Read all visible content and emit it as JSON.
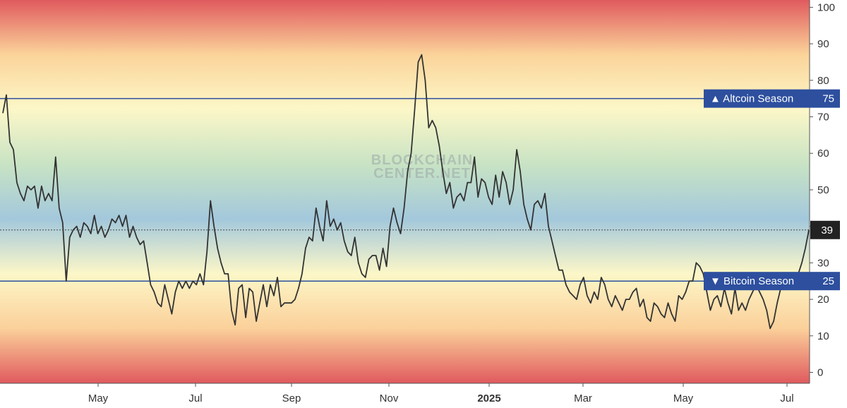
{
  "chart_data": {
    "type": "line",
    "title": "",
    "xlabel": "",
    "ylabel": "",
    "watermark": [
      "BLOCKCHAIN",
      "CENTER.NET"
    ],
    "ylim": [
      -3,
      102
    ],
    "y_ticks": [
      0,
      10,
      20,
      30,
      40,
      50,
      60,
      70,
      80,
      90,
      100
    ],
    "x_ticks": [
      {
        "label": "May",
        "bold": false
      },
      {
        "label": "Jul",
        "bold": false
      },
      {
        "label": "Sep",
        "bold": false
      },
      {
        "label": "Nov",
        "bold": false
      },
      {
        "label": "2025",
        "bold": true
      },
      {
        "label": "Mar",
        "bold": false
      },
      {
        "label": "May",
        "bold": false
      },
      {
        "label": "Jul",
        "bold": false
      }
    ],
    "grid": false,
    "background_gradient": [
      "#e05a5e",
      "#fbd49a",
      "#fcf7c8",
      "#c8e3c4",
      "#a3c8dc",
      "#fcf7c8",
      "#fbd09a",
      "#e05a5e"
    ],
    "line_color": "#333333",
    "thresholds": [
      {
        "label": "▲ Altcoin Season",
        "value": 75,
        "value_label": "75",
        "color": "#2d4f9e"
      },
      {
        "label": "▼ Bitcoin Season",
        "value": 25,
        "value_label": "25",
        "color": "#2d4f9e"
      }
    ],
    "current": {
      "value": 39,
      "value_label": "39",
      "color": "#222222"
    },
    "series": [
      {
        "values": [
          71,
          76,
          63,
          61,
          52,
          49,
          47,
          51,
          50,
          51,
          45,
          51,
          47,
          49,
          47,
          59,
          45,
          41,
          25,
          37,
          39,
          40,
          37,
          41,
          40,
          38,
          43,
          38,
          40,
          37,
          39,
          42,
          41,
          43,
          40,
          43,
          37,
          40,
          37,
          35,
          36,
          30,
          24,
          22,
          19,
          18,
          24,
          20,
          16,
          22,
          25,
          23,
          25,
          23,
          25,
          24,
          27,
          24,
          33,
          47,
          40,
          34,
          30,
          27,
          27,
          17,
          13,
          23,
          24,
          15,
          23,
          22,
          14,
          19,
          24,
          18,
          24,
          21,
          26,
          18,
          19,
          19,
          19,
          20,
          23,
          27,
          34,
          37,
          36,
          45,
          40,
          36,
          47,
          40,
          42,
          39,
          41,
          36,
          33,
          32,
          37,
          30,
          27,
          26,
          31,
          32,
          32,
          28,
          34,
          29,
          40,
          45,
          41,
          38,
          45,
          55,
          60,
          72,
          85,
          87,
          80,
          67,
          69,
          67,
          62,
          55,
          49,
          52,
          45,
          48,
          49,
          47,
          52,
          52,
          59,
          48,
          53,
          52,
          48,
          46,
          54,
          48,
          55,
          52,
          46,
          50,
          61,
          55,
          46,
          42,
          39,
          46,
          47,
          45,
          49,
          40,
          36,
          32,
          28,
          28,
          24,
          22,
          21,
          20,
          24,
          26,
          21,
          19,
          22,
          20,
          26,
          24,
          20,
          18,
          21,
          19,
          17,
          20,
          20,
          22,
          23,
          18,
          20,
          15,
          14,
          19,
          18,
          16,
          15,
          19,
          16,
          14,
          21,
          20,
          22,
          25,
          25,
          30,
          29,
          27,
          22,
          17,
          20,
          21,
          18,
          23,
          19,
          16,
          23,
          17,
          19,
          17,
          20,
          22,
          24,
          22,
          20,
          17,
          12,
          14,
          19,
          23,
          25,
          26,
          25,
          26,
          27,
          30,
          34,
          39
        ]
      }
    ]
  }
}
